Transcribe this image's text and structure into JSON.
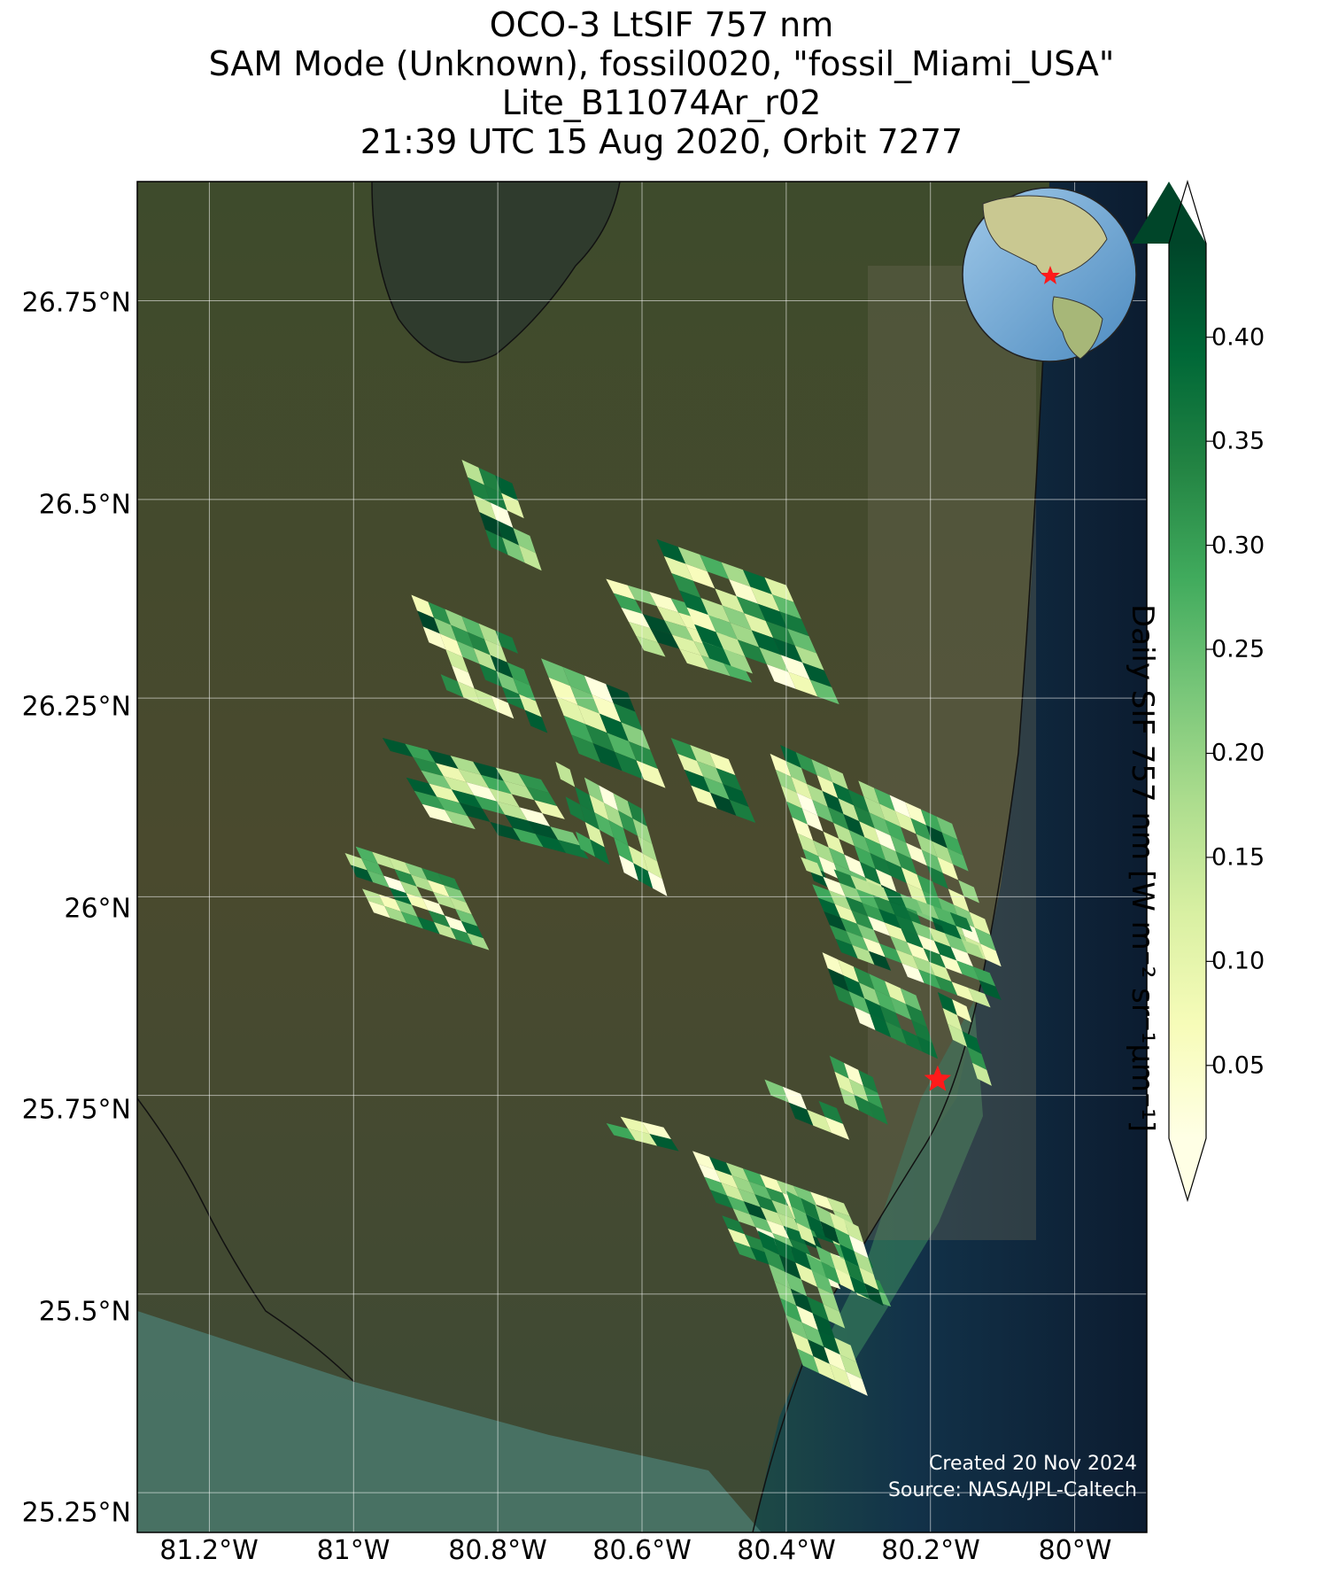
{
  "title": {
    "line1": "OCO-3 LtSIF 757 nm",
    "line2": "SAM Mode (Unknown), fossil0020, \"fossil_Miami_USA\"",
    "line3": "Lite_B11074Ar_r02",
    "line4": "21:39 UTC 15 Aug 2020, Orbit 7277"
  },
  "axes": {
    "lat_ticks": [
      "26.75°N",
      "26.5°N",
      "26.25°N",
      "26°N",
      "25.75°N",
      "25.5°N",
      "25.25°N"
    ],
    "lon_ticks": [
      "81.2°W",
      "81°W",
      "80.8°W",
      "80.6°W",
      "80.4°W",
      "80.2°W",
      "80°W"
    ],
    "lat_values": [
      26.75,
      26.5,
      26.25,
      26.0,
      25.75,
      25.5,
      25.25
    ],
    "lon_values": [
      -81.2,
      -81.0,
      -80.8,
      -80.6,
      -80.4,
      -80.2,
      -80.0
    ],
    "lon_range": [
      -81.3,
      -79.9
    ],
    "lat_range": [
      25.2,
      26.9
    ]
  },
  "colorbar": {
    "label": "Daily SIF 757 nm [W m⁻² sr⁻¹μm⁻¹]",
    "colormap": "YlGn",
    "ticks": [
      "0.40",
      "0.35",
      "0.30",
      "0.25",
      "0.20",
      "0.15",
      "0.10",
      "0.05"
    ],
    "tick_values": [
      0.4,
      0.35,
      0.3,
      0.25,
      0.2,
      0.15,
      0.1,
      0.05
    ],
    "range": [
      0.015,
      0.445
    ],
    "extend": "both"
  },
  "target_site": {
    "lon": -80.19,
    "lat": 25.77,
    "marker": "red-star"
  },
  "credits": {
    "created": "Created 20 Nov 2024",
    "source": "Source: NASA/JPL-Caltech"
  },
  "inset_globe": {
    "highlight": "red-star"
  },
  "colors": {
    "land": "#3b4a2a",
    "ocean": "#0f1f33",
    "lake": "#2d3a2c",
    "gridline": "#ffffff",
    "target": "#ff1a1a"
  },
  "sif_swaths": [
    {
      "lon0": -80.85,
      "lat0": 26.55,
      "lon1": -80.78,
      "lat1": 26.44,
      "rows": 5,
      "cols": 3,
      "seed": 1
    },
    {
      "lon0": -80.92,
      "lat0": 26.38,
      "lon1": -80.78,
      "lat1": 26.26,
      "rows": 6,
      "cols": 6,
      "seed": 2
    },
    {
      "lon0": -80.96,
      "lat0": 26.2,
      "lon1": -80.74,
      "lat1": 26.1,
      "rows": 6,
      "cols": 7,
      "seed": 3
    },
    {
      "lon0": -81.02,
      "lat0": 26.07,
      "lon1": -80.86,
      "lat1": 25.98,
      "rows": 6,
      "cols": 7,
      "seed": 4
    },
    {
      "lon0": -80.74,
      "lat0": 26.3,
      "lon1": -80.62,
      "lat1": 26.18,
      "rows": 5,
      "cols": 4,
      "seed": 5
    },
    {
      "lon0": -80.72,
      "lat0": 26.17,
      "lon1": -80.6,
      "lat1": 26.06,
      "rows": 5,
      "cols": 6,
      "seed": 6
    },
    {
      "lon0": -80.65,
      "lat0": 26.4,
      "lon1": -80.5,
      "lat1": 26.31,
      "rows": 5,
      "cols": 5,
      "seed": 7
    },
    {
      "lon0": -80.58,
      "lat0": 26.45,
      "lon1": -80.4,
      "lat1": 26.3,
      "rows": 7,
      "cols": 6,
      "seed": 8
    },
    {
      "lon0": -80.56,
      "lat0": 26.2,
      "lon1": -80.48,
      "lat1": 26.12,
      "rows": 4,
      "cols": 3,
      "seed": 9
    },
    {
      "lon0": -80.43,
      "lat0": 26.2,
      "lon1": -80.17,
      "lat1": 26.02,
      "rows": 9,
      "cols": 12,
      "seed": 10
    },
    {
      "lon0": -80.38,
      "lat0": 26.05,
      "lon1": -80.15,
      "lat1": 25.93,
      "rows": 7,
      "cols": 10,
      "seed": 11
    },
    {
      "lon0": -80.35,
      "lat0": 25.93,
      "lon1": -80.22,
      "lat1": 25.85,
      "rows": 4,
      "cols": 6,
      "seed": 12
    },
    {
      "lon0": -80.19,
      "lat0": 25.88,
      "lon1": -80.15,
      "lat1": 25.78,
      "rows": 5,
      "cols": 2,
      "seed": 13
    },
    {
      "lon0": -80.34,
      "lat0": 25.8,
      "lon1": -80.28,
      "lat1": 25.74,
      "rows": 3,
      "cols": 3,
      "seed": 14
    },
    {
      "lon0": -80.43,
      "lat0": 25.77,
      "lon1": -80.33,
      "lat1": 25.73,
      "rows": 2,
      "cols": 4,
      "seed": 15
    },
    {
      "lon0": -80.66,
      "lat0": 25.73,
      "lon1": -80.57,
      "lat1": 25.7,
      "rows": 2,
      "cols": 3,
      "seed": 16
    },
    {
      "lon0": -80.53,
      "lat0": 25.68,
      "lon1": -80.32,
      "lat1": 25.55,
      "rows": 8,
      "cols": 9,
      "seed": 17
    },
    {
      "lon0": -80.44,
      "lat0": 25.58,
      "lon1": -80.35,
      "lat1": 25.41,
      "rows": 8,
      "cols": 4,
      "seed": 18
    },
    {
      "lon0": -80.4,
      "lat0": 25.63,
      "lon1": -80.3,
      "lat1": 25.53,
      "rows": 5,
      "cols": 5,
      "seed": 19
    }
  ]
}
